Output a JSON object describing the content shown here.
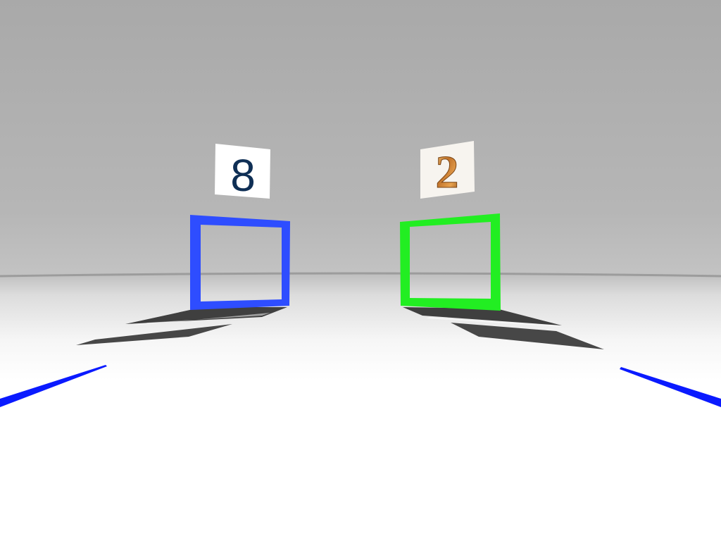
{
  "scene": {
    "environment": "grey-walled-arena",
    "floor_color": "#ffffff",
    "wall_color": "#b0b0b0",
    "horizon_band_color": "#9a9a9a"
  },
  "left_goal": {
    "sign_number": "8",
    "sign_text_color": "#0f2f55",
    "frame_color": "#2e4dff",
    "shadow_color": "#444444"
  },
  "right_goal": {
    "sign_number": "2",
    "sign_text_color": "#c07a2a",
    "frame_color": "#22ee22",
    "shadow_color": "#444444"
  },
  "lane_markers": {
    "color": "#0a1aff"
  }
}
